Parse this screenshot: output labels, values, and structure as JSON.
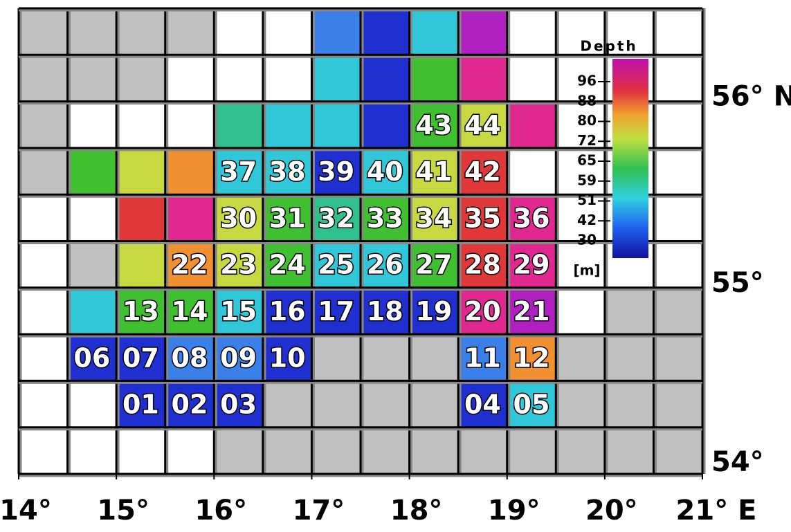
{
  "legend": {
    "title": "Depth",
    "ticks": [
      "96",
      "88",
      "80",
      "72",
      "65",
      "59",
      "51",
      "42",
      "30"
    ],
    "unit": "[m]"
  },
  "x_axis": {
    "labels": [
      "14°",
      "15°",
      "16°",
      "17°",
      "18°",
      "19°",
      "20°",
      "21° E"
    ]
  },
  "y_axis": {
    "labels": [
      "54°",
      "55°",
      "56° N"
    ]
  },
  "cells": [
    [
      null,
      null,
      null,
      null,
      null,
      null,
      null,
      null,
      null,
      null,
      null,
      null,
      null,
      null
    ],
    [
      null,
      null,
      null,
      null,
      null,
      null,
      null,
      null,
      null,
      null,
      null,
      null,
      null,
      null
    ],
    [
      null,
      null,
      null,
      null,
      null,
      null,
      null,
      null,
      "43",
      "44",
      null,
      null,
      null,
      null
    ],
    [
      null,
      null,
      null,
      null,
      "37",
      "38",
      "39",
      "40",
      "41",
      "42",
      null,
      null,
      null,
      null
    ],
    [
      null,
      null,
      null,
      null,
      "30",
      "31",
      "32",
      "33",
      "34",
      "35",
      "36",
      null,
      null,
      null
    ],
    [
      null,
      null,
      null,
      "22",
      "23",
      "24",
      "25",
      "26",
      "27",
      "28",
      "29",
      null,
      null,
      null
    ],
    [
      null,
      null,
      "13",
      "14",
      "15",
      "16",
      "17",
      "18",
      "19",
      "20",
      "21",
      null,
      null,
      null
    ],
    [
      null,
      "06",
      "07",
      "08",
      "09",
      "10",
      null,
      null,
      null,
      "11",
      "12",
      null,
      null,
      null
    ],
    [
      null,
      null,
      "01",
      "02",
      "03",
      null,
      null,
      null,
      null,
      "04",
      "05",
      null,
      null,
      null
    ],
    [
      null,
      null,
      null,
      null,
      null,
      null,
      null,
      null,
      null,
      null,
      null,
      null,
      null,
      null
    ]
  ]
}
